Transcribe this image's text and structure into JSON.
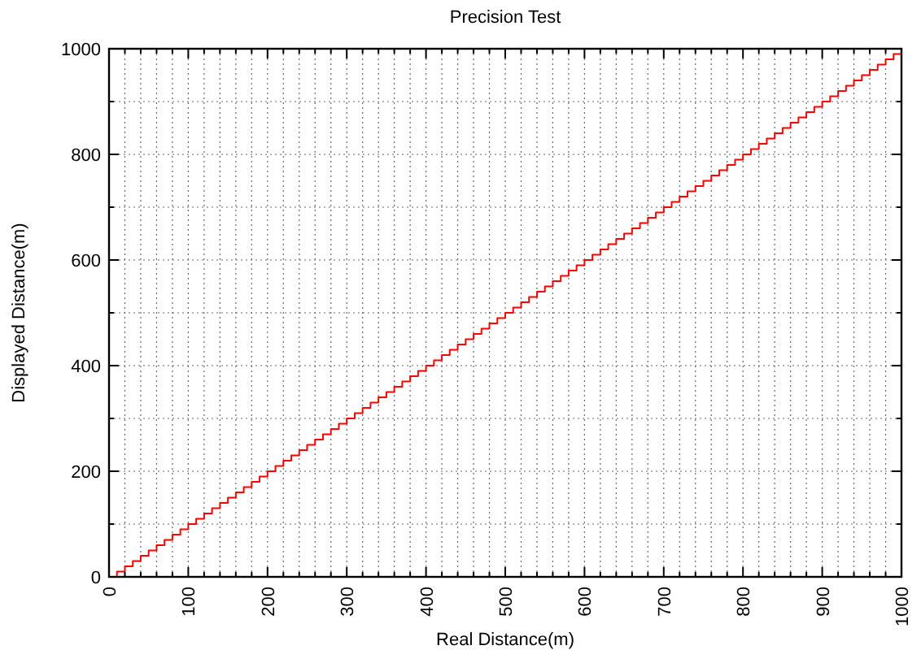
{
  "chart_data": {
    "type": "step",
    "title": "Precision Test",
    "xlabel": "Real Distance(m)",
    "ylabel": "Displayed Distance(m)",
    "x": [
      0,
      10,
      20,
      30,
      40,
      50,
      60,
      70,
      80,
      90,
      100,
      110,
      120,
      130,
      140,
      150,
      160,
      170,
      180,
      190,
      200,
      210,
      220,
      230,
      240,
      250,
      260,
      270,
      280,
      290,
      300,
      310,
      320,
      330,
      340,
      350,
      360,
      370,
      380,
      390,
      400,
      410,
      420,
      430,
      440,
      450,
      460,
      470,
      480,
      490,
      500,
      510,
      520,
      530,
      540,
      550,
      560,
      570,
      580,
      590,
      600,
      610,
      620,
      630,
      640,
      650,
      660,
      670,
      680,
      690,
      700,
      710,
      720,
      730,
      740,
      750,
      760,
      770,
      780,
      790,
      800,
      810,
      820,
      830,
      840,
      850,
      860,
      870,
      880,
      890,
      900,
      910,
      920,
      930,
      940,
      950,
      960,
      970,
      980,
      990,
      1000
    ],
    "series": [
      {
        "color": "#ff0000",
        "values": [
          0,
          10,
          20,
          30,
          40,
          50,
          60,
          70,
          80,
          90,
          100,
          110,
          120,
          130,
          140,
          150,
          160,
          170,
          180,
          190,
          200,
          210,
          220,
          230,
          240,
          250,
          260,
          270,
          280,
          290,
          300,
          310,
          320,
          330,
          340,
          350,
          360,
          370,
          380,
          390,
          400,
          410,
          420,
          430,
          440,
          450,
          460,
          470,
          480,
          490,
          500,
          510,
          520,
          530,
          540,
          550,
          560,
          570,
          580,
          590,
          600,
          610,
          620,
          630,
          640,
          650,
          660,
          670,
          680,
          690,
          700,
          710,
          720,
          730,
          740,
          750,
          760,
          770,
          780,
          790,
          800,
          810,
          820,
          830,
          840,
          850,
          860,
          870,
          880,
          890,
          900,
          910,
          920,
          930,
          940,
          950,
          960,
          970,
          980,
          990,
          1000
        ]
      }
    ],
    "xlim": [
      0,
      1000
    ],
    "xticks": [
      0,
      {
        "value": 20,
        "label": null
      },
      {
        "value": 40,
        "label": null
      },
      {
        "value": 60,
        "label": null
      },
      {
        "value": 80,
        "label": null
      },
      100,
      {
        "value": 120,
        "label": null
      },
      {
        "value": 140,
        "label": null
      },
      {
        "value": 160,
        "label": null
      },
      {
        "value": 180,
        "label": null
      },
      200,
      {
        "value": 220,
        "label": null
      },
      {
        "value": 240,
        "label": null
      },
      {
        "value": 260,
        "label": null
      },
      {
        "value": 280,
        "label": null
      },
      300,
      {
        "value": 320,
        "label": null
      },
      {
        "value": 340,
        "label": null
      },
      {
        "value": 360,
        "label": null
      },
      {
        "value": 380,
        "label": null
      },
      400,
      {
        "value": 420,
        "label": null
      },
      {
        "value": 440,
        "label": null
      },
      {
        "value": 460,
        "label": null
      },
      {
        "value": 480,
        "label": null
      },
      500,
      {
        "value": 520,
        "label": null
      },
      {
        "value": 540,
        "label": null
      },
      {
        "value": 560,
        "label": null
      },
      {
        "value": 580,
        "label": null
      },
      600,
      {
        "value": 620,
        "label": null
      },
      {
        "value": 640,
        "label": null
      },
      {
        "value": 660,
        "label": null
      },
      {
        "value": 680,
        "label": null
      },
      700,
      {
        "value": 720,
        "label": null
      },
      {
        "value": 740,
        "label": null
      },
      {
        "value": 760,
        "label": null
      },
      {
        "value": 780,
        "label": null
      },
      800,
      {
        "value": 820,
        "label": null
      },
      {
        "value": 840,
        "label": null
      },
      {
        "value": 860,
        "label": null
      },
      {
        "value": 880,
        "label": null
      },
      900,
      {
        "value": 920,
        "label": null
      },
      {
        "value": 940,
        "label": null
      },
      {
        "value": 960,
        "label": null
      },
      {
        "value": 980,
        "label": null
      },
      1000
    ],
    "ylim": [
      0,
      1000
    ],
    "yticks": [
      0,
      {
        "value": 100,
        "label": null
      },
      200,
      {
        "value": 300,
        "label": null
      },
      400,
      {
        "value": 500,
        "label": null
      },
      600,
      {
        "value": 700,
        "label": null
      },
      800,
      {
        "value": 900,
        "label": null
      },
      1000
    ],
    "grid": true,
    "line_style": "solid",
    "marker": "none"
  }
}
